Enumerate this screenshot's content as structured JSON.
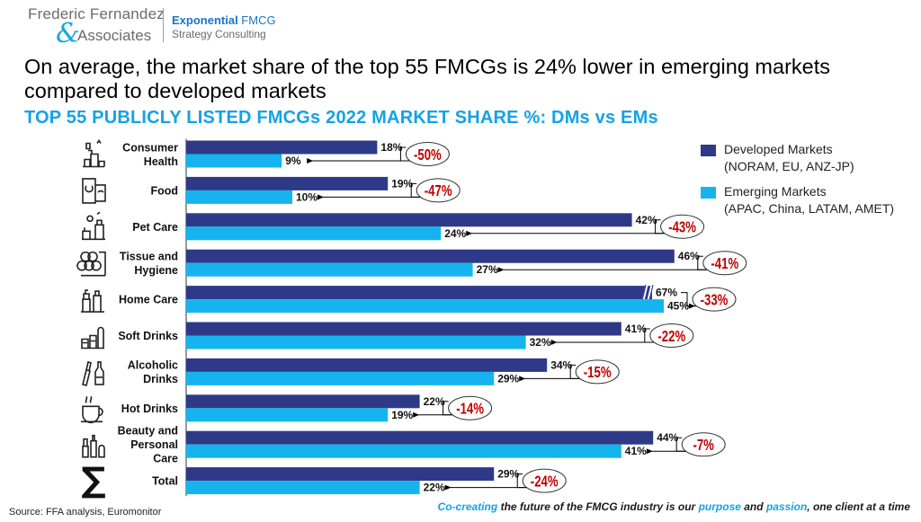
{
  "brand": {
    "name_line1": "Frederic Fernandez",
    "ampersand": "&",
    "name_line2": "Associates",
    "consulting_bold": "Exponential",
    "consulting_rest": " FMCG",
    "consulting_line2": "Strategy Consulting"
  },
  "headline": "On average, the market share of the top 55 FMCGs is 24% lower in emerging markets compared to developed markets",
  "colors": {
    "developed": "#2e3a87",
    "emerging": "#16b4ef",
    "change_text": "#c00000",
    "subtitle": "#14a2e6"
  },
  "chart_data": {
    "type": "bar",
    "orientation": "horizontal",
    "title": "TOP 55 PUBLICLY LISTED FMCGs 2022 MARKET SHARE %: DMs vs EMs",
    "categories": [
      "Consumer Health",
      "Food",
      "Pet Care",
      "Tissue and Hygiene",
      "Home Care",
      "Soft Drinks",
      "Alcoholic Drinks",
      "Hot Drinks",
      "Beauty and Personal Care",
      "Total"
    ],
    "category_lines": [
      [
        "Consumer",
        "Health"
      ],
      [
        "Food"
      ],
      [
        "Pet Care"
      ],
      [
        "Tissue and",
        "Hygiene"
      ],
      [
        "Home Care"
      ],
      [
        "Soft Drinks"
      ],
      [
        "Alcoholic",
        "Drinks"
      ],
      [
        "Hot Drinks"
      ],
      [
        "Beauty and",
        "Personal",
        "Care"
      ],
      [
        "Total"
      ]
    ],
    "icons": [
      "consumer-health-icon",
      "food-icon",
      "pet-care-icon",
      "tissue-hygiene-icon",
      "home-care-icon",
      "soft-drinks-icon",
      "alcoholic-drinks-icon",
      "hot-drinks-icon",
      "beauty-care-icon",
      "sigma-icon"
    ],
    "series": [
      {
        "name": "Developed Markets",
        "values": [
          18,
          19,
          42,
          46,
          67,
          41,
          34,
          22,
          44,
          29
        ]
      },
      {
        "name": "Emerging Markets",
        "values": [
          9,
          10,
          24,
          27,
          45,
          32,
          29,
          19,
          41,
          22
        ]
      }
    ],
    "change_labels": [
      "-50%",
      "-47%",
      "-43%",
      "-41%",
      "-33%",
      "-22%",
      "-15%",
      "-14%",
      "-7%",
      "-24%"
    ],
    "axis_break": "Home Care developed bar",
    "xlim": [
      0,
      50
    ],
    "grid": false,
    "legend_position": "right"
  },
  "legend": [
    {
      "line1": "Developed Markets",
      "line2": "(NORAM, EU, ANZ-JP)"
    },
    {
      "line1": "Emerging Markets",
      "line2": "(APAC, China, LATAM, AMET)"
    }
  ],
  "footer": {
    "source": "Source: FFA analysis, Euromonitor",
    "tag_1": "Co-creating",
    "tag_2": " the future of the FMCG industry is our ",
    "tag_3": "purpose",
    "tag_4": " and ",
    "tag_5": "passion",
    "tag_6": ", one client at a time"
  }
}
